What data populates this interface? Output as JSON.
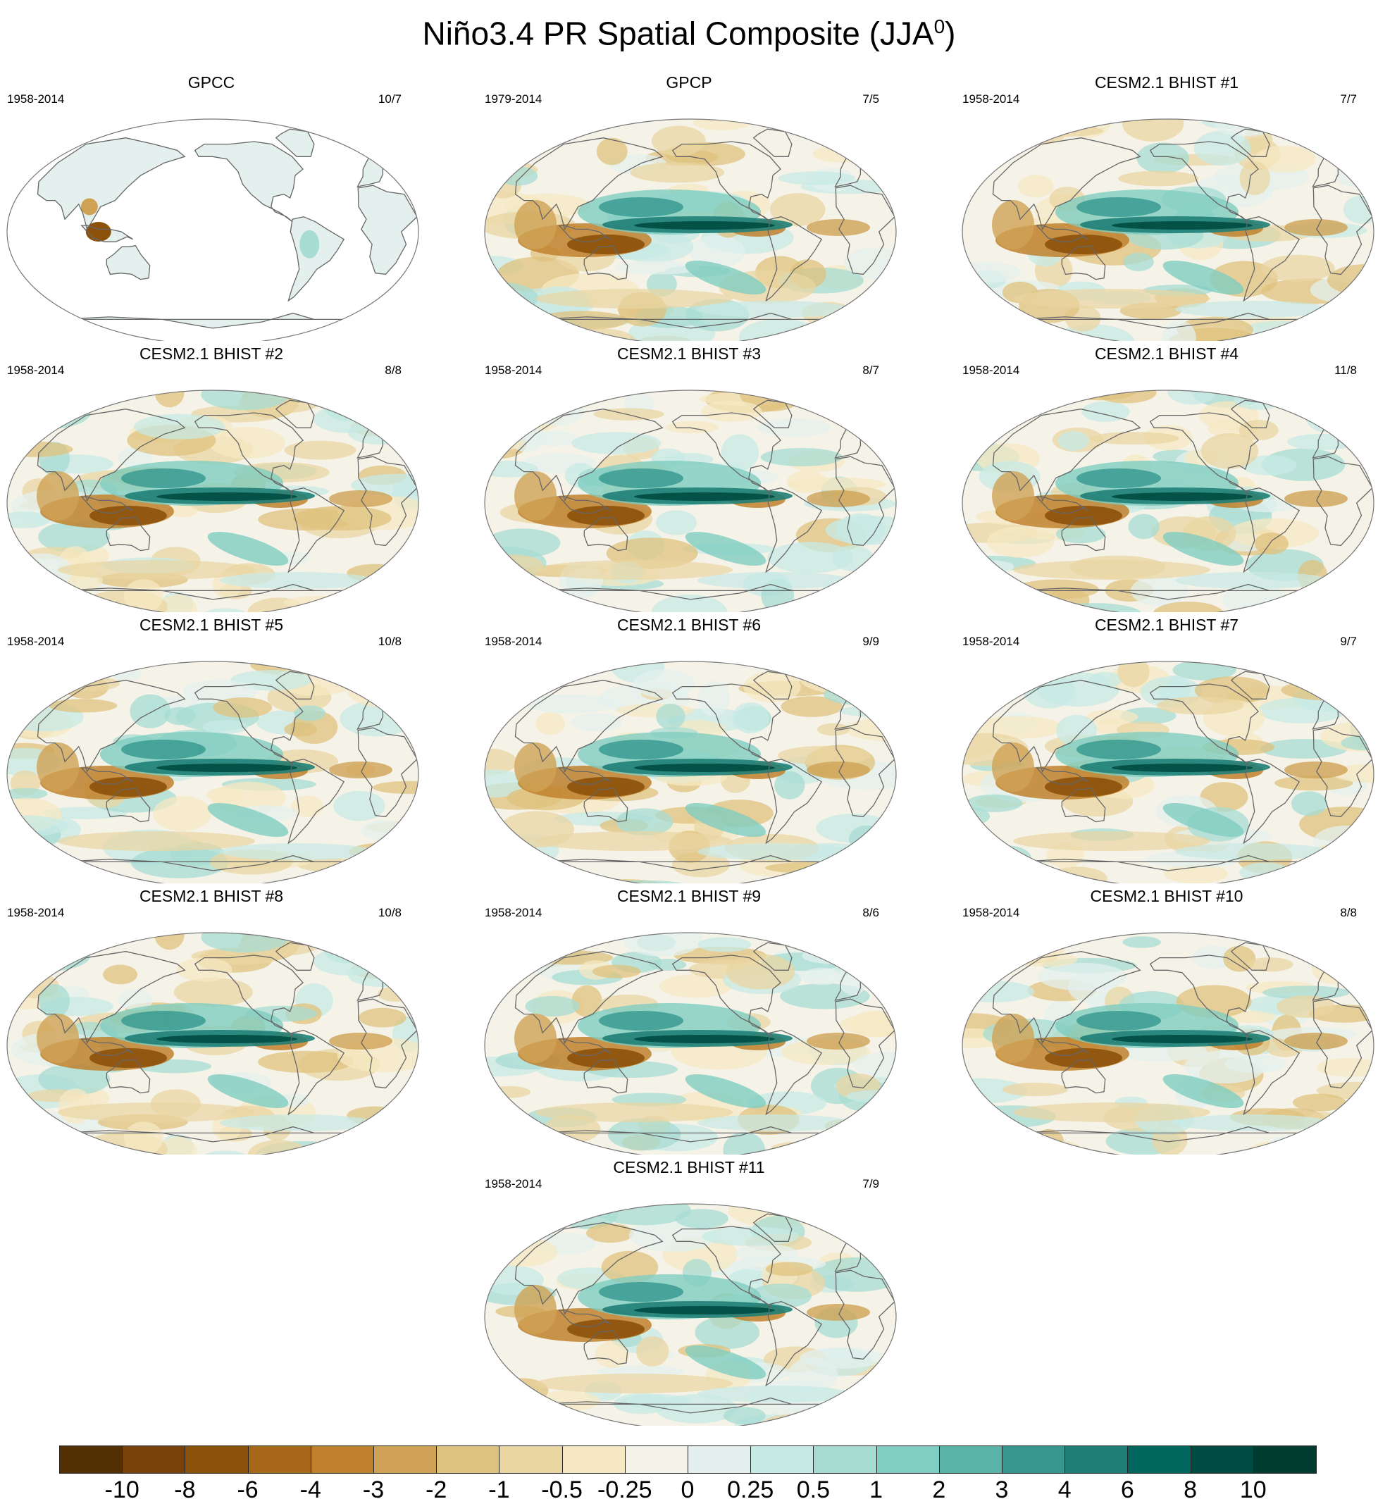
{
  "title": "Niño3.4 PR Spatial Composite (JJA",
  "title_superscript": "0",
  "title_close": ")",
  "panels": [
    {
      "title": "GPCC",
      "left": "1958-2014",
      "right": "10/7",
      "land_only": true
    },
    {
      "title": "GPCP",
      "left": "1979-2014",
      "right": "7/5"
    },
    {
      "title": "CESM2.1 BHIST #1",
      "left": "1958-2014",
      "right": "7/7"
    },
    {
      "title": "CESM2.1 BHIST #2",
      "left": "1958-2014",
      "right": "8/8"
    },
    {
      "title": "CESM2.1 BHIST #3",
      "left": "1958-2014",
      "right": "8/7"
    },
    {
      "title": "CESM2.1 BHIST #4",
      "left": "1958-2014",
      "right": "11/8"
    },
    {
      "title": "CESM2.1 BHIST #5",
      "left": "1958-2014",
      "right": "10/8"
    },
    {
      "title": "CESM2.1 BHIST #6",
      "left": "1958-2014",
      "right": "9/9"
    },
    {
      "title": "CESM2.1 BHIST #7",
      "left": "1958-2014",
      "right": "9/7"
    },
    {
      "title": "CESM2.1 BHIST #8",
      "left": "1958-2014",
      "right": "10/8"
    },
    {
      "title": "CESM2.1 BHIST #9",
      "left": "1958-2014",
      "right": "8/6"
    },
    {
      "title": "CESM2.1 BHIST #10",
      "left": "1958-2014",
      "right": "8/8"
    },
    {
      "title": "CESM2.1 BHIST #11",
      "left": "1958-2014",
      "right": "7/9"
    }
  ],
  "colorbar": {
    "colors": [
      "#543005",
      "#7a420b",
      "#8c510a",
      "#a8681c",
      "#bf812d",
      "#d0a255",
      "#dfc27d",
      "#ead6a3",
      "#f6e8c3",
      "#f5f2e8",
      "#e3f0ee",
      "#c7eae5",
      "#a7dcd3",
      "#80cdc1",
      "#5ab4a8",
      "#35978f",
      "#1f7f77",
      "#01665e",
      "#004b42",
      "#003c30"
    ],
    "labels": [
      "-10",
      "-8",
      "-6",
      "-4",
      "-3",
      "-2",
      "-1",
      "-0.5",
      "-0.25",
      "0",
      "0.25",
      "0.5",
      "1",
      "2",
      "3",
      "4",
      "6",
      "8",
      "10"
    ]
  }
}
